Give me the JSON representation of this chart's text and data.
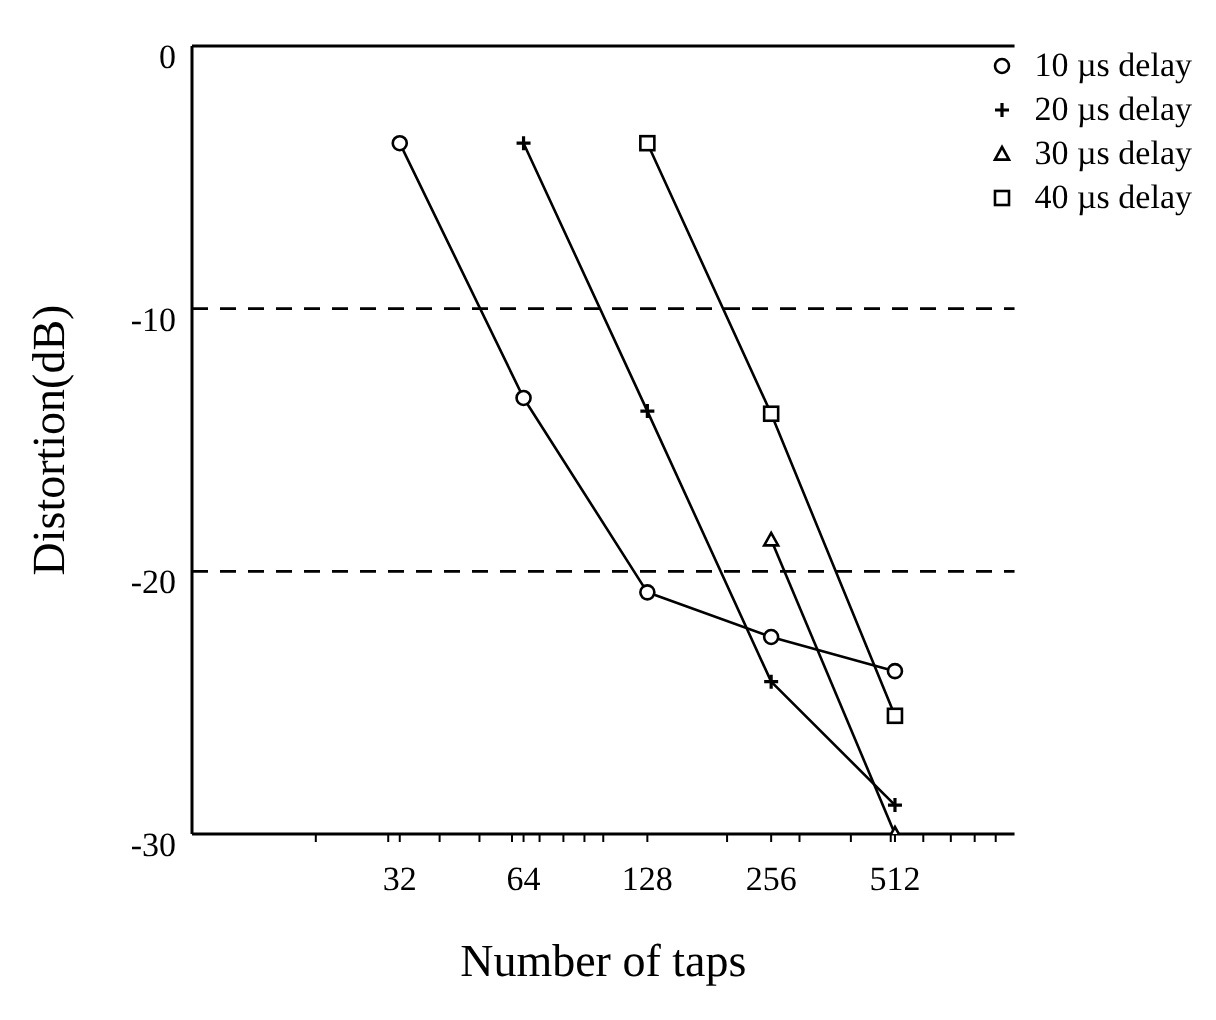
{
  "chart_data": {
    "type": "line",
    "xlabel": "Number of taps",
    "ylabel": "Distortion(dB)",
    "log": "x",
    "xlim": [
      10,
      1000
    ],
    "xticks": [
      {
        "value": 20,
        "label": null
      },
      {
        "value": 30,
        "label": null
      },
      32,
      {
        "value": 40,
        "label": null
      },
      {
        "value": 50,
        "label": null
      },
      {
        "value": 60,
        "label": null
      },
      64,
      {
        "value": 70,
        "label": null
      },
      {
        "value": 80,
        "label": null
      },
      {
        "value": 90,
        "label": null
      },
      {
        "value": 100,
        "label": null
      },
      128,
      {
        "value": 200,
        "label": null
      },
      256,
      {
        "value": 300,
        "label": null
      },
      {
        "value": 400,
        "label": null
      },
      {
        "value": 500,
        "label": null
      },
      512,
      {
        "value": 600,
        "label": null
      },
      {
        "value": 700,
        "label": null
      },
      {
        "value": 800,
        "label": null
      },
      {
        "value": 900,
        "label": null
      }
    ],
    "ylim": [
      -30,
      0
    ],
    "yticks": [
      0,
      -10,
      -20,
      -30
    ],
    "grid": false,
    "legend": "top right",
    "line_style": "solid",
    "ref_lines": [
      {
        "axis": "y",
        "value": -10,
        "line_style": "dashed"
      },
      {
        "axis": "y",
        "value": -20,
        "line_style": "dashed"
      }
    ],
    "series": [
      {
        "name": "10 µs delay",
        "color": "#000000",
        "marker": "circle",
        "x": [
          32,
          64,
          128,
          256,
          512
        ],
        "values": [
          -3.7,
          -13.4,
          -20.8,
          -22.5,
          -23.8
        ]
      },
      {
        "name": "20 µs delay",
        "color": "#000000",
        "marker": "cross",
        "x": [
          64,
          128,
          256,
          512
        ],
        "values": [
          -3.7,
          -13.9,
          -24.2,
          -28.9
        ]
      },
      {
        "name": "30 µs delay",
        "color": "#000000",
        "marker": "triangle",
        "x": [
          256,
          512
        ],
        "values": [
          -18.8,
          -30
        ]
      },
      {
        "name": "40 µs delay",
        "color": "#000000",
        "marker": "square",
        "x": [
          128,
          256,
          512
        ],
        "values": [
          -3.7,
          -14,
          -25.5
        ]
      }
    ]
  }
}
